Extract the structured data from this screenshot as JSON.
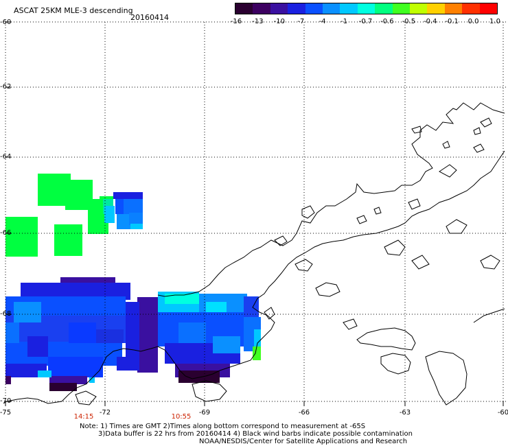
{
  "header": {
    "title": "ASCAT 25KM MLE-3 descending",
    "date": "20160414"
  },
  "colorbar": {
    "labels": [
      "-16",
      "-13",
      "-10",
      "-7",
      "-4",
      "-1",
      "-0.7",
      "-0.6",
      "-0.5",
      "-0.4",
      "-0.1",
      "0.0",
      "1.0"
    ],
    "colors": [
      "#2a0030",
      "#3c0060",
      "#3a10a0",
      "#1a20e0",
      "#0a50ff",
      "#0a90ff",
      "#00c8ff",
      "#00ffe0",
      "#00ff80",
      "#40ff20",
      "#c0ff00",
      "#ffd000",
      "#ff8000",
      "#ff3000",
      "#ff0000"
    ]
  },
  "axes": {
    "lat_labels": [
      "-60",
      "-62",
      "-64",
      "-66",
      "-68",
      "-70"
    ],
    "lon_labels": [
      "-75",
      "-72",
      "-69",
      "-66",
      "-63",
      "-60"
    ]
  },
  "times": [
    {
      "label": "14:15",
      "lon": -72.2
    },
    {
      "label": "10:55",
      "lon": -69.3
    }
  ],
  "notes": {
    "line1": "Note: 1) Times are GMT 2)Times along bottom correspond to measurement at -65S",
    "line2": "3)Data buffer is 22 hrs from 20160414 4) Black wind barbs indicate possible contamination",
    "line3": "NOAA/NESDIS/Center for Satellite Applications and Research"
  }
}
